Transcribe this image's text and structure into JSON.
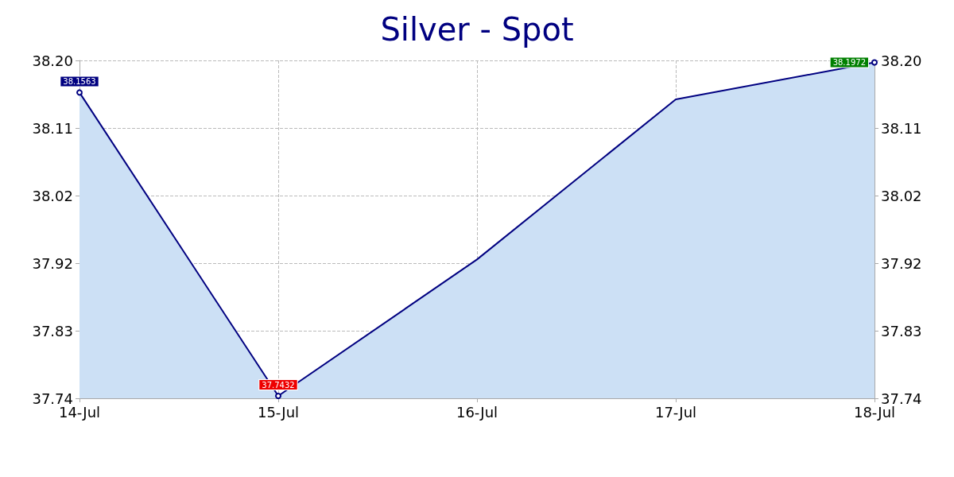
{
  "chart_data": {
    "type": "area",
    "title": "Silver - Spot",
    "categories": [
      "14-Jul",
      "15-Jul",
      "16-Jul",
      "17-Jul",
      "18-Jul"
    ],
    "series": [
      {
        "color": "#000080",
        "values": [
          38.1563,
          37.7432,
          37.929,
          38.147,
          38.1972
        ]
      }
    ],
    "value_labels": [
      "38.1563",
      "37.7432",
      null,
      null,
      "38.1972"
    ],
    "ylim": [
      37.74,
      38.2
    ],
    "yticks": [
      {
        "value": 37.74,
        "label": "37.74"
      },
      {
        "value": 37.832,
        "label": "37.83"
      },
      {
        "value": 37.924,
        "label": "37.92"
      },
      {
        "value": 38.016,
        "label": "38.02"
      },
      {
        "value": 38.108,
        "label": "38.11"
      },
      {
        "value": 38.2,
        "label": "38.20"
      }
    ],
    "y2lim": [
      37.74,
      38.2
    ],
    "y2ticks": [
      {
        "value": 37.74,
        "label": "37.74"
      },
      {
        "value": 37.832,
        "label": "37.83"
      },
      {
        "value": 37.924,
        "label": "37.92"
      },
      {
        "value": 38.016,
        "label": "38.02"
      },
      {
        "value": 38.108,
        "label": "38.11"
      },
      {
        "value": 38.2,
        "label": "38.20"
      }
    ],
    "grid": true,
    "marker": "circle",
    "line_style": "solid"
  }
}
